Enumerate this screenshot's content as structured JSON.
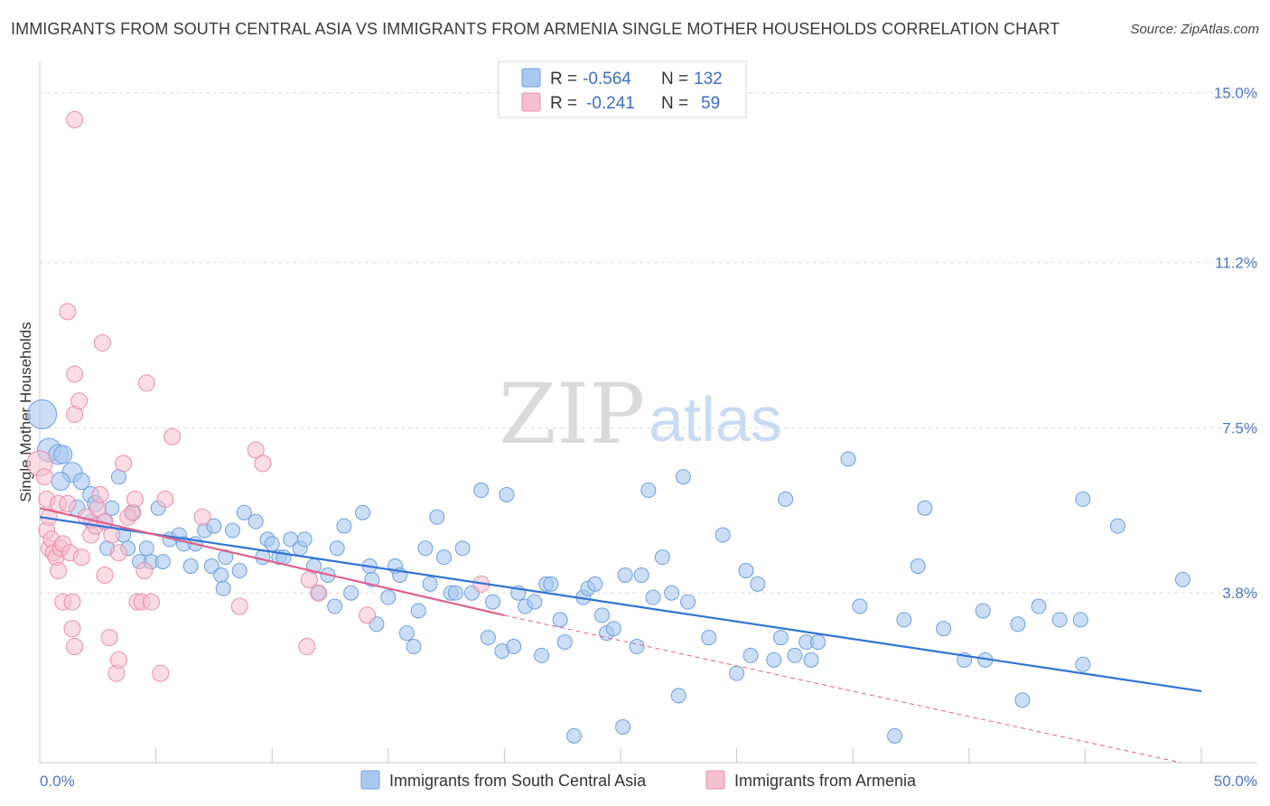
{
  "title": "IMMIGRANTS FROM SOUTH CENTRAL ASIA VS IMMIGRANTS FROM ARMENIA SINGLE MOTHER HOUSEHOLDS CORRELATION CHART",
  "source": "Source: ZipAtlas.com",
  "watermark": {
    "zip": "ZIP",
    "atlas": "atlas"
  },
  "legend": {
    "r_label": "R =",
    "n_label": "N =",
    "blue": {
      "r": "-0.564",
      "n": "132"
    },
    "pink": {
      "r": "-0.241",
      "n": "59"
    }
  },
  "colors": {
    "blue_fill": "#a9c8f0",
    "blue_stroke": "#6f9fdc",
    "blue_line": "#2f73d6",
    "pink_fill": "#f6bfd0",
    "pink_stroke": "#e98fab",
    "pink_line": "#e0608a",
    "tick_text": "#4a78c2"
  },
  "chart_data": {
    "type": "scatter",
    "title": "IMMIGRANTS FROM SOUTH CENTRAL ASIA VS IMMIGRANTS FROM ARMENIA SINGLE MOTHER HOUSEHOLDS CORRELATION CHART",
    "xlabel": "",
    "ylabel": "Single Mother Households",
    "xlim": [
      0,
      50
    ],
    "ylim": [
      0,
      15.5
    ],
    "x_tick_labels": [
      "0.0%",
      "50.0%"
    ],
    "y_ticks": [
      3.8,
      7.5,
      11.2,
      15.0
    ],
    "y_tick_labels": [
      "3.8%",
      "7.5%",
      "11.2%",
      "15.0%"
    ],
    "grid": true,
    "series": [
      {
        "name": "Immigrants from South Central Asia",
        "color": "#a9c8f0",
        "r": -0.564,
        "n": 132,
        "trend": {
          "x0": 0,
          "y0": 5.5,
          "x1": 50,
          "y1": 1.6,
          "style": "solid"
        },
        "points": [
          [
            0.1,
            7.8,
            16
          ],
          [
            0.4,
            7.0,
            13
          ],
          [
            0.8,
            6.9,
            11
          ],
          [
            1.0,
            6.9,
            10
          ],
          [
            1.4,
            6.5,
            11
          ],
          [
            0.9,
            6.3,
            10
          ],
          [
            1.8,
            6.3,
            9
          ],
          [
            2.2,
            6.0,
            9
          ],
          [
            2.4,
            5.8,
            9
          ],
          [
            1.6,
            5.7,
            9
          ],
          [
            2.2,
            5.4,
            8
          ],
          [
            2.8,
            5.4,
            8
          ],
          [
            3.1,
            5.7,
            8
          ],
          [
            3.4,
            6.4,
            8
          ],
          [
            4.0,
            5.6,
            8
          ],
          [
            3.6,
            5.1,
            8
          ],
          [
            2.9,
            4.8,
            8
          ],
          [
            3.8,
            4.8,
            8
          ],
          [
            4.3,
            4.5,
            8
          ],
          [
            4.8,
            4.5,
            8
          ],
          [
            5.1,
            5.7,
            8
          ],
          [
            4.6,
            4.8,
            8
          ],
          [
            5.3,
            4.5,
            8
          ],
          [
            5.6,
            5.0,
            8
          ],
          [
            6.0,
            5.1,
            8
          ],
          [
            6.2,
            4.9,
            8
          ],
          [
            6.5,
            4.4,
            8
          ],
          [
            6.7,
            4.9,
            8
          ],
          [
            7.1,
            5.2,
            8
          ],
          [
            7.5,
            5.3,
            8
          ],
          [
            7.4,
            4.4,
            8
          ],
          [
            7.8,
            4.2,
            8
          ],
          [
            7.9,
            3.9,
            8
          ],
          [
            8.0,
            4.6,
            8
          ],
          [
            8.3,
            5.2,
            8
          ],
          [
            8.6,
            4.3,
            8
          ],
          [
            8.8,
            5.6,
            8
          ],
          [
            9.3,
            5.4,
            8
          ],
          [
            9.6,
            4.6,
            8
          ],
          [
            9.8,
            5.0,
            8
          ],
          [
            10.0,
            4.9,
            8
          ],
          [
            10.3,
            4.6,
            8
          ],
          [
            10.5,
            4.6,
            8
          ],
          [
            10.8,
            5.0,
            8
          ],
          [
            11.2,
            4.8,
            8
          ],
          [
            11.4,
            5.0,
            8
          ],
          [
            11.8,
            4.4,
            8
          ],
          [
            12.0,
            3.8,
            8
          ],
          [
            12.4,
            4.2,
            8
          ],
          [
            12.8,
            4.8,
            8
          ],
          [
            12.7,
            3.5,
            8
          ],
          [
            13.1,
            5.3,
            8
          ],
          [
            13.4,
            3.8,
            8
          ],
          [
            13.9,
            5.6,
            8
          ],
          [
            14.2,
            4.4,
            8
          ],
          [
            14.3,
            4.1,
            8
          ],
          [
            14.5,
            3.1,
            8
          ],
          [
            15.0,
            3.7,
            8
          ],
          [
            15.3,
            4.4,
            8
          ],
          [
            15.5,
            4.2,
            8
          ],
          [
            15.8,
            2.9,
            8
          ],
          [
            16.1,
            2.6,
            8
          ],
          [
            16.3,
            3.4,
            8
          ],
          [
            16.6,
            4.8,
            8
          ],
          [
            16.8,
            4.0,
            8
          ],
          [
            17.1,
            5.5,
            8
          ],
          [
            17.4,
            4.6,
            8
          ],
          [
            17.7,
            3.8,
            8
          ],
          [
            17.9,
            3.8,
            8
          ],
          [
            18.2,
            4.8,
            8
          ],
          [
            18.6,
            3.8,
            8
          ],
          [
            19.0,
            6.1,
            8
          ],
          [
            19.3,
            2.8,
            8
          ],
          [
            19.5,
            3.6,
            8
          ],
          [
            19.9,
            2.5,
            8
          ],
          [
            20.1,
            6.0,
            8
          ],
          [
            20.4,
            2.6,
            8
          ],
          [
            20.6,
            3.8,
            8
          ],
          [
            20.9,
            3.5,
            8
          ],
          [
            21.3,
            3.6,
            8
          ],
          [
            21.6,
            2.4,
            8
          ],
          [
            21.8,
            4.0,
            8
          ],
          [
            22.0,
            4.0,
            8
          ],
          [
            22.4,
            3.2,
            8
          ],
          [
            22.6,
            2.7,
            8
          ],
          [
            23.0,
            0.6,
            8
          ],
          [
            23.4,
            3.7,
            8
          ],
          [
            23.6,
            3.9,
            8
          ],
          [
            23.9,
            4.0,
            8
          ],
          [
            24.2,
            3.3,
            8
          ],
          [
            24.4,
            2.9,
            8
          ],
          [
            24.7,
            3.0,
            8
          ],
          [
            25.1,
            0.8,
            8
          ],
          [
            25.2,
            4.2,
            8
          ],
          [
            25.7,
            2.6,
            8
          ],
          [
            25.9,
            4.2,
            8
          ],
          [
            26.2,
            6.1,
            8
          ],
          [
            26.4,
            3.7,
            8
          ],
          [
            26.8,
            4.6,
            8
          ],
          [
            27.2,
            3.8,
            8
          ],
          [
            27.5,
            1.5,
            8
          ],
          [
            27.7,
            6.4,
            8
          ],
          [
            27.9,
            3.6,
            8
          ],
          [
            28.8,
            2.8,
            8
          ],
          [
            29.4,
            5.1,
            8
          ],
          [
            30.0,
            2.0,
            8
          ],
          [
            30.4,
            4.3,
            8
          ],
          [
            30.6,
            2.4,
            8
          ],
          [
            30.9,
            4.0,
            8
          ],
          [
            31.6,
            2.3,
            8
          ],
          [
            31.9,
            2.8,
            8
          ],
          [
            32.1,
            5.9,
            8
          ],
          [
            32.5,
            2.4,
            8
          ],
          [
            33.0,
            2.7,
            8
          ],
          [
            33.2,
            2.3,
            8
          ],
          [
            33.5,
            2.7,
            8
          ],
          [
            34.8,
            6.8,
            8
          ],
          [
            35.3,
            3.5,
            8
          ],
          [
            36.8,
            0.6,
            8
          ],
          [
            37.2,
            3.2,
            8
          ],
          [
            37.8,
            4.4,
            8
          ],
          [
            38.1,
            5.7,
            8
          ],
          [
            38.9,
            3.0,
            8
          ],
          [
            39.8,
            2.3,
            8
          ],
          [
            40.6,
            3.4,
            8
          ],
          [
            40.7,
            2.3,
            8
          ],
          [
            42.1,
            3.1,
            8
          ],
          [
            42.3,
            1.4,
            8
          ],
          [
            43.0,
            3.5,
            8
          ],
          [
            43.9,
            3.2,
            8
          ],
          [
            44.8,
            3.2,
            8
          ],
          [
            44.9,
            5.9,
            8
          ],
          [
            44.9,
            2.2,
            8
          ],
          [
            46.4,
            5.3,
            8
          ],
          [
            49.2,
            4.1,
            8
          ]
        ]
      },
      {
        "name": "Immigrants from Armenia",
        "color": "#f6bfd0",
        "r": -0.241,
        "n": 59,
        "trend": {
          "x0": 0,
          "y0": 5.7,
          "x1": 20,
          "y1": 3.3,
          "dash_to_x": 50,
          "dash_to_y": -0.1
        },
        "points": [
          [
            0.0,
            6.7,
            14
          ],
          [
            0.2,
            6.4,
            9
          ],
          [
            0.3,
            5.9,
            9
          ],
          [
            0.3,
            5.2,
            9
          ],
          [
            0.4,
            5.5,
            9
          ],
          [
            0.4,
            4.8,
            9
          ],
          [
            0.5,
            5.0,
            9
          ],
          [
            0.6,
            4.7,
            9
          ],
          [
            0.7,
            4.6,
            9
          ],
          [
            0.8,
            5.8,
            9
          ],
          [
            0.8,
            4.3,
            9
          ],
          [
            0.9,
            4.8,
            9
          ],
          [
            1.0,
            4.9,
            9
          ],
          [
            1.0,
            3.6,
            9
          ],
          [
            1.2,
            10.1,
            9
          ],
          [
            1.2,
            5.8,
            9
          ],
          [
            1.3,
            4.7,
            9
          ],
          [
            1.4,
            3.6,
            9
          ],
          [
            1.4,
            3.0,
            9
          ],
          [
            1.5,
            2.6,
            9
          ],
          [
            1.5,
            7.8,
            9
          ],
          [
            1.5,
            8.7,
            9
          ],
          [
            1.5,
            14.4,
            9
          ],
          [
            1.7,
            8.1,
            9
          ],
          [
            1.8,
            4.6,
            9
          ],
          [
            2.0,
            5.5,
            9
          ],
          [
            2.2,
            5.1,
            9
          ],
          [
            2.4,
            5.3,
            9
          ],
          [
            2.5,
            5.7,
            9
          ],
          [
            2.6,
            6.0,
            9
          ],
          [
            2.7,
            9.4,
            9
          ],
          [
            2.8,
            5.4,
            9
          ],
          [
            2.8,
            4.2,
            9
          ],
          [
            3.0,
            2.8,
            9
          ],
          [
            3.1,
            5.1,
            9
          ],
          [
            3.3,
            2.0,
            9
          ],
          [
            3.4,
            2.3,
            9
          ],
          [
            3.4,
            4.7,
            9
          ],
          [
            3.6,
            6.7,
            9
          ],
          [
            3.8,
            5.5,
            9
          ],
          [
            4.0,
            5.6,
            9
          ],
          [
            4.1,
            5.9,
            9
          ],
          [
            4.2,
            3.6,
            9
          ],
          [
            4.4,
            3.6,
            9
          ],
          [
            4.5,
            4.3,
            9
          ],
          [
            4.6,
            8.5,
            9
          ],
          [
            4.8,
            3.6,
            9
          ],
          [
            5.2,
            2.0,
            9
          ],
          [
            5.4,
            5.9,
            9
          ],
          [
            5.7,
            7.3,
            9
          ],
          [
            7.0,
            5.5,
            9
          ],
          [
            8.6,
            3.5,
            9
          ],
          [
            9.3,
            7.0,
            9
          ],
          [
            9.6,
            6.7,
            9
          ],
          [
            11.5,
            2.6,
            9
          ],
          [
            11.6,
            4.1,
            9
          ],
          [
            12.0,
            3.8,
            9
          ],
          [
            14.1,
            3.3,
            9
          ],
          [
            19.0,
            4.0,
            9
          ]
        ]
      }
    ]
  },
  "bottom_legend": {
    "blue_label": "Immigrants from South Central Asia",
    "pink_label": "Immigrants from Armenia"
  }
}
